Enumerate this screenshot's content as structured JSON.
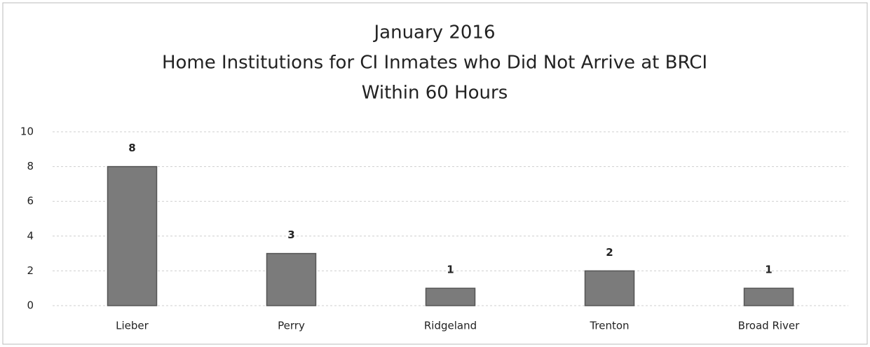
{
  "chart_data": {
    "type": "bar",
    "title": [
      "January 2016",
      "Home Institutions for CI Inmates who Did Not Arrive at BRCI",
      "Within 60 Hours"
    ],
    "categories": [
      "Lieber",
      "Perry",
      "Ridgeland",
      "Trenton",
      "Broad River"
    ],
    "values": [
      8,
      3,
      1,
      2,
      1
    ],
    "color": "#7b7b7b",
    "ylim": [
      0,
      10
    ],
    "yticks": [
      0,
      2,
      4,
      6,
      8,
      10
    ],
    "grid": true
  }
}
